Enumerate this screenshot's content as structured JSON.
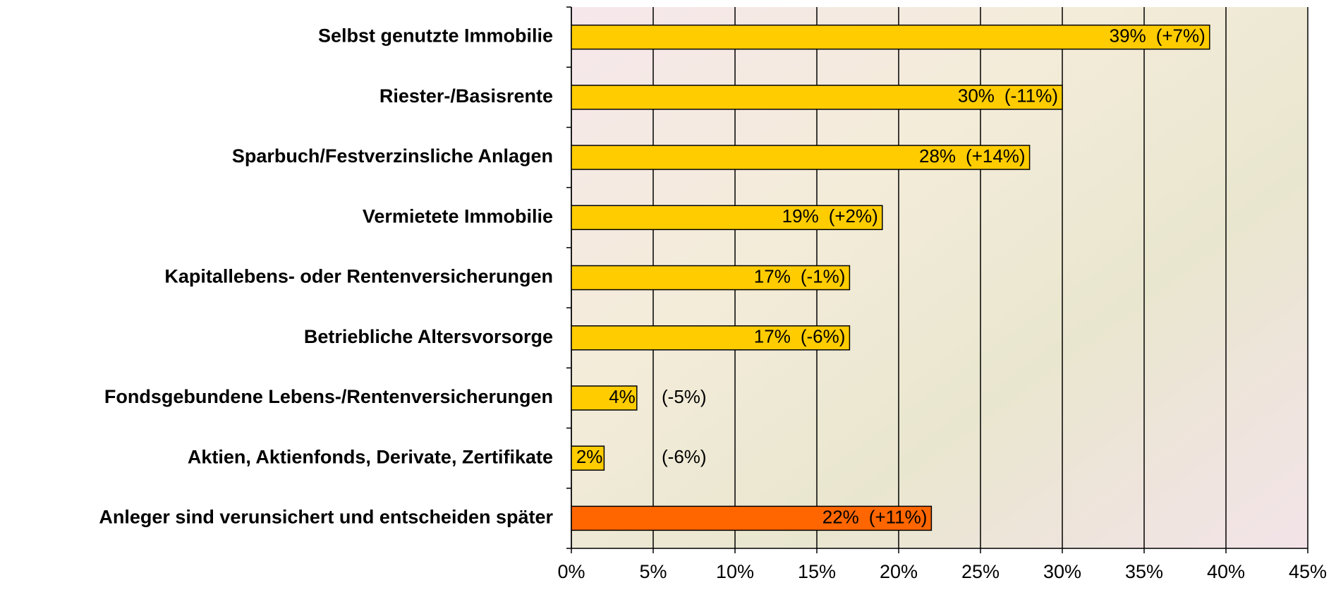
{
  "chart_data": {
    "type": "bar",
    "orientation": "horizontal",
    "categories": [
      "Selbst genutzte Immobilie",
      "Riester-/Basisrente",
      "Sparbuch/Festverzinsliche Anlagen",
      "Vermietete Immobilie",
      "Kapitallebens- oder Rentenversicherungen",
      "Betriebliche Altersvorsorge",
      "Fondsgebundene Lebens-/Rentenversicherungen",
      "Aktien, Aktienfonds, Derivate, Zertifikate",
      "Anleger sind verunsichert und entscheiden später"
    ],
    "values": [
      39,
      30,
      28,
      19,
      17,
      17,
      4,
      2,
      22
    ],
    "value_labels": [
      "39%",
      "30%",
      "28%",
      "19%",
      "17%",
      "17%",
      "4%",
      "2%",
      "22%"
    ],
    "change_labels": [
      "(+7%)",
      "(-11%)",
      "(+14%)",
      "(+2%)",
      "(-1%)",
      "(-6%)",
      "(-5%)",
      "(-6%)",
      "(+11%)"
    ],
    "colors": [
      "#ffcc00",
      "#ffcc00",
      "#ffcc00",
      "#ffcc00",
      "#ffcc00",
      "#ffcc00",
      "#ffcc00",
      "#ffcc00",
      "#ff6600"
    ],
    "xlim": [
      0,
      45
    ],
    "xticks": [
      {
        "value": 0,
        "label": "0%"
      },
      {
        "value": 5,
        "label": "5%"
      },
      {
        "value": 10,
        "label": "10%"
      },
      {
        "value": 15,
        "label": "15%"
      },
      {
        "value": 20,
        "label": "20%"
      },
      {
        "value": 25,
        "label": "25%"
      },
      {
        "value": 30,
        "label": "30%"
      },
      {
        "value": 35,
        "label": "35%"
      },
      {
        "value": 40,
        "label": "40%"
      },
      {
        "value": 45,
        "label": "45%"
      }
    ],
    "grid": true
  }
}
